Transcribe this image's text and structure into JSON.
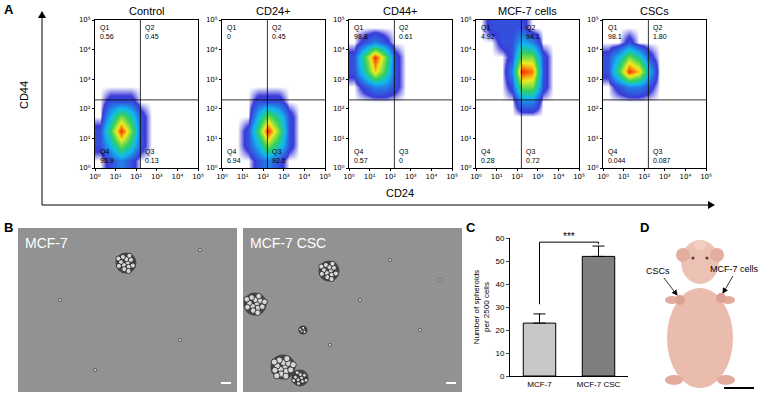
{
  "panel_labels": [
    "A",
    "B",
    "C",
    "D"
  ],
  "flow_axes": {
    "x_label": "CD24",
    "y_label": "CD44"
  },
  "chart_data": [
    {
      "type": "heatmap",
      "title": "Control",
      "log": true,
      "xlim": [
        1,
        100000
      ],
      "ylim": [
        1,
        100000
      ],
      "xticks": [
        {
          "value": 1,
          "label": "10⁰"
        },
        {
          "value": 10,
          "label": "10¹"
        },
        {
          "value": 100,
          "label": "10²"
        },
        {
          "value": 1000,
          "label": "10³"
        },
        {
          "value": 10000,
          "label": "10⁴"
        },
        {
          "value": 100000,
          "label": "10⁵"
        }
      ],
      "yticks": [
        {
          "value": 1,
          "label": "10⁰"
        },
        {
          "value": 10,
          "label": "10¹"
        },
        {
          "value": 100,
          "label": "10²"
        },
        {
          "value": 1000,
          "label": "10³"
        },
        {
          "value": 10000,
          "label": "10⁴"
        },
        {
          "value": 100000,
          "label": "10⁵"
        }
      ],
      "x_bins": [
        1,
        3.16,
        10,
        31.6,
        100,
        316,
        1000,
        3160,
        10000,
        31600,
        100000
      ],
      "y_bins": [
        1,
        3.16,
        10,
        31.6,
        100,
        316,
        1000,
        3160,
        10000,
        31600,
        100000
      ],
      "cells": [
        [
          0,
          1,
          2,
          1,
          0,
          0,
          0,
          0,
          0,
          0
        ],
        [
          1,
          3,
          6,
          4,
          1,
          0,
          0,
          0,
          0,
          0
        ],
        [
          1,
          5,
          10,
          6,
          1,
          0,
          0,
          0,
          0,
          0
        ],
        [
          0,
          3,
          6,
          4,
          1,
          0,
          0,
          0,
          0,
          0
        ],
        [
          0,
          1,
          1,
          1,
          0,
          0,
          0,
          0,
          0,
          0
        ],
        [
          0,
          0,
          0,
          0,
          0,
          0,
          0,
          0,
          0,
          0
        ],
        [
          0,
          0,
          0,
          0,
          0,
          0,
          0,
          0,
          0,
          0
        ],
        [
          0,
          0,
          0,
          0,
          0,
          0,
          0,
          0,
          0,
          0
        ],
        [
          0,
          0,
          0,
          0,
          0,
          0,
          0,
          0,
          0,
          0
        ],
        [
          0,
          0,
          0,
          0,
          0,
          0,
          0,
          0,
          0,
          0
        ]
      ],
      "gates": {
        "x": 160,
        "y": 200
      },
      "quadrants": [
        {
          "label": "Q1",
          "value": 0.56
        },
        {
          "label": "Q2",
          "value": 0.45
        },
        {
          "label": "Q4",
          "value": 98.9
        },
        {
          "label": "Q3",
          "value": 0.13
        }
      ]
    },
    {
      "type": "heatmap",
      "title": "CD24+",
      "log": true,
      "xlim": [
        1,
        100000
      ],
      "ylim": [
        1,
        100000
      ],
      "xticks": [
        {
          "value": 1,
          "label": "10⁰"
        },
        {
          "value": 10,
          "label": "10¹"
        },
        {
          "value": 100,
          "label": "10²"
        },
        {
          "value": 1000,
          "label": "10³"
        },
        {
          "value": 10000,
          "label": "10⁴"
        },
        {
          "value": 100000,
          "label": "10⁵"
        }
      ],
      "yticks": [
        {
          "value": 1,
          "label": "10⁰"
        },
        {
          "value": 10,
          "label": "10¹"
        },
        {
          "value": 100,
          "label": "10²"
        },
        {
          "value": 1000,
          "label": "10³"
        },
        {
          "value": 10000,
          "label": "10⁴"
        },
        {
          "value": 100000,
          "label": "10⁵"
        }
      ],
      "x_bins": [
        1,
        3.16,
        10,
        31.6,
        100,
        316,
        1000,
        3160,
        10000,
        31600,
        100000
      ],
      "y_bins": [
        1,
        3.16,
        10,
        31.6,
        100,
        316,
        1000,
        3160,
        10000,
        31600,
        100000
      ],
      "cells": [
        [
          0,
          0,
          0,
          1,
          2,
          1,
          0,
          0,
          0,
          0
        ],
        [
          0,
          0,
          1,
          3,
          6,
          4,
          1,
          0,
          0,
          0
        ],
        [
          0,
          0,
          1,
          5,
          10,
          6,
          1,
          0,
          0,
          0
        ],
        [
          0,
          0,
          0,
          3,
          6,
          4,
          1,
          0,
          0,
          0
        ],
        [
          0,
          0,
          0,
          1,
          1,
          1,
          0,
          0,
          0,
          0
        ],
        [
          0,
          0,
          0,
          0,
          0,
          0,
          0,
          0,
          0,
          0
        ],
        [
          0,
          0,
          0,
          0,
          0,
          0,
          0,
          0,
          0,
          0
        ],
        [
          0,
          0,
          0,
          0,
          0,
          0,
          0,
          0,
          0,
          0
        ],
        [
          0,
          0,
          0,
          0,
          0,
          0,
          0,
          0,
          0,
          0
        ],
        [
          0,
          0,
          0,
          0,
          0,
          0,
          0,
          0,
          0,
          0
        ]
      ],
      "gates": {
        "x": 160,
        "y": 200
      },
      "quadrants": [
        {
          "label": "Q1",
          "value": 0
        },
        {
          "label": "Q2",
          "value": 0.45
        },
        {
          "label": "Q4",
          "value": 6.94
        },
        {
          "label": "Q3",
          "value": 92.6
        }
      ]
    },
    {
      "type": "heatmap",
      "title": "CD44+",
      "log": true,
      "xlim": [
        1,
        100000
      ],
      "ylim": [
        1,
        100000
      ],
      "xticks": [
        {
          "value": 1,
          "label": "10⁰"
        },
        {
          "value": 10,
          "label": "10¹"
        },
        {
          "value": 100,
          "label": "10²"
        },
        {
          "value": 1000,
          "label": "10³"
        },
        {
          "value": 10000,
          "label": "10⁴"
        },
        {
          "value": 100000,
          "label": "10⁵"
        }
      ],
      "yticks": [
        {
          "value": 1,
          "label": "10⁰"
        },
        {
          "value": 10,
          "label": "10¹"
        },
        {
          "value": 100,
          "label": "10²"
        },
        {
          "value": 1000,
          "label": "10³"
        },
        {
          "value": 10000,
          "label": "10⁴"
        },
        {
          "value": 100000,
          "label": "10⁵"
        }
      ],
      "x_bins": [
        1,
        3.16,
        10,
        31.6,
        100,
        316,
        1000,
        3160,
        10000,
        31600,
        100000
      ],
      "y_bins": [
        1,
        3.16,
        10,
        31.6,
        100,
        316,
        1000,
        3160,
        10000,
        31600,
        100000
      ],
      "cells": [
        [
          0,
          0,
          0,
          0,
          0,
          0,
          0,
          0,
          0,
          0
        ],
        [
          0,
          0,
          0,
          0,
          0,
          0,
          0,
          0,
          0,
          0
        ],
        [
          0,
          0,
          0,
          0,
          0,
          0,
          0,
          0,
          0,
          0
        ],
        [
          0,
          0,
          0,
          0,
          0,
          0,
          0,
          0,
          0,
          0
        ],
        [
          0,
          0,
          0,
          0,
          0,
          0,
          0,
          0,
          0,
          0
        ],
        [
          0,
          1,
          2,
          2,
          1,
          0,
          0,
          0,
          0,
          0
        ],
        [
          1,
          4,
          8,
          5,
          1,
          0,
          0,
          0,
          0,
          0
        ],
        [
          1,
          5,
          10,
          6,
          1,
          0,
          0,
          0,
          0,
          0
        ],
        [
          0,
          1,
          2,
          1,
          0,
          0,
          0,
          0,
          0,
          0
        ],
        [
          0,
          0,
          0,
          0,
          0,
          0,
          0,
          0,
          0,
          0
        ]
      ],
      "gates": {
        "x": 160,
        "y": 200
      },
      "quadrants": [
        {
          "label": "Q1",
          "value": 98.8
        },
        {
          "label": "Q2",
          "value": 0.61
        },
        {
          "label": "Q4",
          "value": 0.57
        },
        {
          "label": "Q3",
          "value": 0
        }
      ]
    },
    {
      "type": "heatmap",
      "title": "MCF-7 cells",
      "log": true,
      "xlim": [
        1,
        100000
      ],
      "ylim": [
        1,
        100000
      ],
      "xticks": [
        {
          "value": 1,
          "label": "10⁰"
        },
        {
          "value": 10,
          "label": "10¹"
        },
        {
          "value": 100,
          "label": "10²"
        },
        {
          "value": 1000,
          "label": "10³"
        },
        {
          "value": 10000,
          "label": "10⁴"
        },
        {
          "value": 100000,
          "label": "10⁵"
        }
      ],
      "yticks": [
        {
          "value": 1,
          "label": "10⁰"
        },
        {
          "value": 10,
          "label": "10¹"
        },
        {
          "value": 100,
          "label": "10²"
        },
        {
          "value": 1000,
          "label": "10³"
        },
        {
          "value": 10000,
          "label": "10⁴"
        },
        {
          "value": 100000,
          "label": "10⁵"
        }
      ],
      "x_bins": [
        1,
        3.16,
        10,
        31.6,
        100,
        316,
        1000,
        3160,
        10000,
        31600,
        100000
      ],
      "y_bins": [
        1,
        3.16,
        10,
        31.6,
        100,
        316,
        1000,
        3160,
        10000,
        31600,
        100000
      ],
      "cells": [
        [
          0,
          0,
          0,
          0,
          0,
          0,
          0,
          0,
          0,
          0
        ],
        [
          0,
          0,
          0,
          0,
          0,
          0,
          0,
          0,
          0,
          0
        ],
        [
          0,
          0,
          0,
          0,
          0,
          0,
          0,
          0,
          0,
          0
        ],
        [
          0,
          0,
          0,
          0,
          0,
          0,
          0,
          0,
          0,
          0
        ],
        [
          0,
          0,
          0,
          0,
          2,
          2,
          0,
          0,
          0,
          0
        ],
        [
          0,
          0,
          0,
          1,
          6,
          6,
          1,
          0,
          0,
          0
        ],
        [
          0,
          0,
          0,
          2,
          10,
          9,
          1,
          0,
          0,
          0
        ],
        [
          0,
          0,
          0,
          1,
          6,
          6,
          1,
          0,
          0,
          0
        ],
        [
          0,
          0,
          1,
          1,
          3,
          2,
          0,
          0,
          0,
          0
        ],
        [
          0,
          1,
          1,
          1,
          1,
          0,
          0,
          0,
          0,
          0
        ]
      ],
      "gates": {
        "x": 160,
        "y": 200
      },
      "quadrants": [
        {
          "label": "Q1",
          "value": 4.92
        },
        {
          "label": "Q2",
          "value": 94.1
        },
        {
          "label": "Q4",
          "value": 0.28
        },
        {
          "label": "Q3",
          "value": 0.72
        }
      ]
    },
    {
      "type": "heatmap",
      "title": "CSCs",
      "log": true,
      "xlim": [
        1,
        100000
      ],
      "ylim": [
        1,
        100000
      ],
      "xticks": [
        {
          "value": 1,
          "label": "10⁰"
        },
        {
          "value": 10,
          "label": "10¹"
        },
        {
          "value": 100,
          "label": "10²"
        },
        {
          "value": 1000,
          "label": "10³"
        },
        {
          "value": 10000,
          "label": "10⁴"
        },
        {
          "value": 100000,
          "label": "10⁵"
        }
      ],
      "yticks": [
        {
          "value": 1,
          "label": "10⁰"
        },
        {
          "value": 10,
          "label": "10¹"
        },
        {
          "value": 100,
          "label": "10²"
        },
        {
          "value": 1000,
          "label": "10³"
        },
        {
          "value": 10000,
          "label": "10⁴"
        },
        {
          "value": 100000,
          "label": "10⁵"
        }
      ],
      "x_bins": [
        1,
        3.16,
        10,
        31.6,
        100,
        316,
        1000,
        3160,
        10000,
        31600,
        100000
      ],
      "y_bins": [
        1,
        3.16,
        10,
        31.6,
        100,
        316,
        1000,
        3160,
        10000,
        31600,
        100000
      ],
      "cells": [
        [
          0,
          0,
          0,
          0,
          0,
          0,
          0,
          0,
          0,
          0
        ],
        [
          0,
          0,
          0,
          0,
          0,
          0,
          0,
          0,
          0,
          0
        ],
        [
          0,
          0,
          0,
          0,
          0,
          0,
          0,
          0,
          0,
          0
        ],
        [
          0,
          0,
          0,
          0,
          0,
          0,
          0,
          0,
          0,
          0
        ],
        [
          0,
          0,
          0,
          0,
          0,
          0,
          0,
          0,
          0,
          0
        ],
        [
          0,
          1,
          2,
          2,
          1,
          0,
          0,
          0,
          0,
          0
        ],
        [
          1,
          5,
          10,
          8,
          3,
          0,
          0,
          0,
          0,
          0
        ],
        [
          1,
          3,
          6,
          4,
          1,
          0,
          0,
          0,
          0,
          0
        ],
        [
          0,
          0,
          1,
          0,
          0,
          0,
          0,
          0,
          0,
          0
        ],
        [
          0,
          0,
          0,
          0,
          0,
          0,
          0,
          0,
          0,
          0
        ]
      ],
      "gates": {
        "x": 160,
        "y": 200
      },
      "quadrants": [
        {
          "label": "Q1",
          "value": 98.1
        },
        {
          "label": "Q2",
          "value": 1.8,
          "value_label": "1.80"
        },
        {
          "label": "Q4",
          "value": 0.044
        },
        {
          "label": "Q3",
          "value": 0.087
        }
      ]
    },
    {
      "type": "bar",
      "categories": [
        "MCF-7",
        "MCF-7 CSC"
      ],
      "values": [
        23,
        52
      ],
      "errors": [
        4,
        4.5
      ],
      "colors": [
        "#c8c8c8",
        "#7f7f7f"
      ],
      "ylim": [
        0,
        60
      ],
      "yticks": [
        0,
        10,
        20,
        30,
        40,
        50,
        60
      ],
      "ylabel": [
        "Number of spheroids",
        "per 2500 cells"
      ],
      "annotations": [
        "***"
      ]
    }
  ],
  "micrographs": [
    {
      "label": "MCF-7"
    },
    {
      "label": "MCF-7 CSC"
    }
  ],
  "photo": {
    "labels": [
      "CSCs",
      "MCF-7 cells"
    ]
  }
}
